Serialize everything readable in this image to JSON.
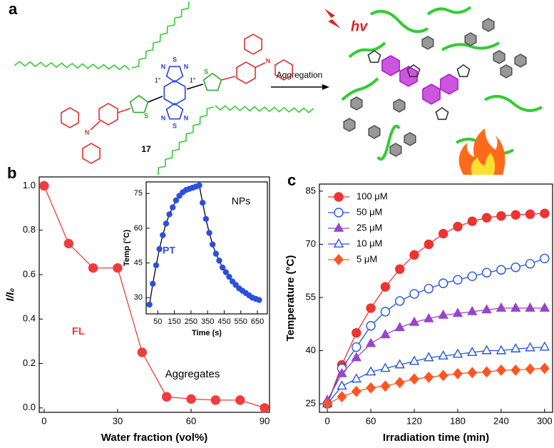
{
  "scheme": {
    "panel_label": "a",
    "light": "hv",
    "arrow_label": "Aggregation",
    "compound": "17",
    "carbon_labels": [
      "1°",
      "1°"
    ],
    "atoms": [
      "N",
      "S",
      "N",
      "N",
      "S",
      "N",
      "S",
      "S",
      "N",
      "N"
    ]
  },
  "chart_data": [
    {
      "type": "line",
      "panel_label": "b",
      "x": [
        0,
        10,
        20,
        30,
        40,
        50,
        60,
        70,
        80,
        90
      ],
      "series": [
        {
          "color": "#f03c3c",
          "marker": "circle",
          "filled": true,
          "values": [
            1.0,
            0.74,
            0.63,
            0.63,
            0.25,
            0.05,
            0.04,
            0.035,
            0.035,
            0.0
          ]
        }
      ],
      "xlabel": "Water fraction (vol%)",
      "ylabel": "I/I₀",
      "xlim": [
        -2,
        92
      ],
      "ylim": [
        -0.02,
        1.04
      ],
      "xticks": [
        0,
        30,
        60,
        90
      ],
      "yticks": [
        {
          "value": 0,
          "label": "0.0"
        },
        0.2,
        0.4,
        0.6,
        0.8,
        {
          "value": 1,
          "label": "1.0"
        }
      ],
      "annotations": [
        "FL",
        "Aggregates"
      ]
    },
    {
      "type": "line",
      "x": [
        0,
        20,
        40,
        60,
        80,
        100,
        120,
        140,
        160,
        180,
        200,
        220,
        240,
        260,
        280,
        300,
        320,
        340,
        360,
        380,
        400,
        420,
        440,
        460,
        480,
        500,
        520,
        540,
        560,
        580,
        600,
        620,
        640,
        660
      ],
      "series": [
        {
          "color": "#2c4fe0",
          "line_color": "#000000",
          "marker": "circle",
          "filled": true,
          "values": [
            27,
            36,
            44,
            51,
            57,
            62,
            66,
            69,
            72,
            74,
            75.5,
            76.5,
            77,
            77.5,
            78,
            78.5,
            71,
            64,
            58,
            53,
            49,
            46,
            43,
            41,
            39,
            37,
            35.5,
            34,
            33,
            32,
            31,
            30,
            29.5,
            29
          ]
        }
      ],
      "xlabel": "Time (s)",
      "ylabel": "Temp (°C)",
      "xlim": [
        -20,
        710
      ],
      "ylim": [
        23,
        80
      ],
      "xticks": [
        50,
        150,
        250,
        350,
        450,
        550,
        650
      ],
      "yticks": [
        30,
        45,
        60,
        75
      ],
      "annotations": [
        "NPs",
        "PT"
      ]
    },
    {
      "type": "line",
      "panel_label": "c",
      "x": [
        0,
        20,
        40,
        60,
        80,
        100,
        120,
        140,
        160,
        180,
        200,
        220,
        240,
        260,
        280,
        300
      ],
      "series": [
        {
          "name": "100 μM",
          "color": "#ee3333",
          "marker": "circle",
          "filled": true,
          "values": [
            25,
            36,
            45,
            52,
            58,
            63,
            67,
            70,
            73,
            75,
            76.5,
            77.5,
            78,
            78.3,
            78.5,
            78.7
          ]
        },
        {
          "name": "50 μM",
          "color": "#2255dd",
          "marker": "circle",
          "filled": false,
          "values": [
            25,
            35,
            41,
            47,
            51,
            54,
            56,
            57.5,
            59,
            60,
            61,
            62,
            62.8,
            63.5,
            64.5,
            66
          ]
        },
        {
          "name": "25 μM",
          "color": "#9944cc",
          "marker": "triangle",
          "filled": true,
          "values": [
            26,
            33.5,
            38,
            42,
            44.5,
            46.5,
            48,
            49,
            50,
            50.5,
            51,
            51.5,
            52,
            52,
            52,
            52
          ]
        },
        {
          "name": "10 μM",
          "color": "#2255dd",
          "marker": "triangle",
          "filled": false,
          "values": [
            25,
            30,
            32,
            34,
            35,
            36,
            37,
            38,
            38.5,
            39,
            39.5,
            40,
            40,
            40.5,
            40.8,
            41
          ]
        },
        {
          "name": "5 μM",
          "color": "#ff5522",
          "marker": "diamond",
          "filled": true,
          "values": [
            25,
            27,
            28.5,
            29.5,
            30,
            31,
            32,
            32.5,
            33,
            33.5,
            33.8,
            34,
            34.5,
            34.5,
            34.8,
            35
          ]
        }
      ],
      "xlabel": "Irradiation time (min)",
      "ylabel": "Temperature (°C)",
      "xlim": [
        -11,
        311
      ],
      "ylim": [
        22.6,
        87
      ],
      "xticks": [
        0,
        60,
        120,
        180,
        240,
        300
      ],
      "yticks": [
        25,
        40,
        55,
        70,
        85
      ],
      "legend": "upper left"
    }
  ]
}
